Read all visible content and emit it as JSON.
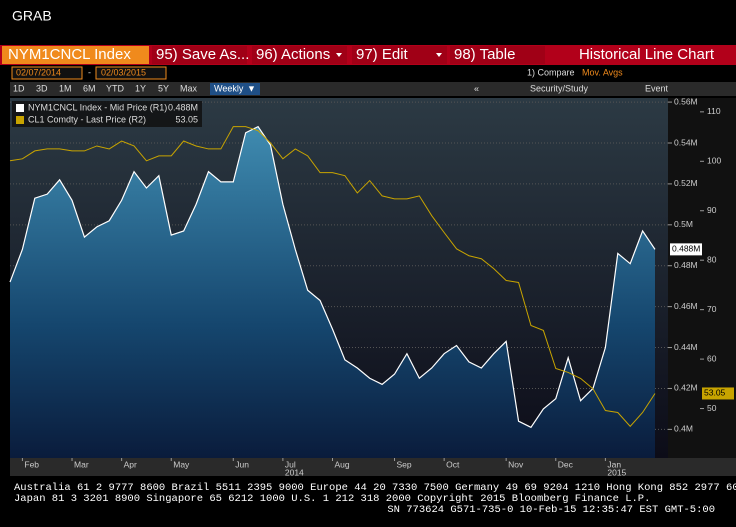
{
  "ui": {
    "window_title": "GRAB",
    "ticker": "NYM1CNCL Index",
    "menu": [
      "95) Save As...",
      "96) Actions",
      "97) Edit",
      "98) Table"
    ],
    "function_title": "Historical Line Chart",
    "start_date": "02/07/2014",
    "date_sep": "-",
    "end_date": "02/03/2015",
    "compare": "1) Compare",
    "mov_avgs": "Mov. Avgs",
    "ranges": [
      "1D",
      "3D",
      "1M",
      "6M",
      "YTD",
      "1Y",
      "5Y",
      "Max"
    ],
    "frequency": "Weekly",
    "security_study": "Security/Study",
    "event": "Event",
    "footer": [
      "Australia 61 2 9777 8600 Brazil 5511 2395 9000 Europe 44 20 7330 7500 Germany 49 69 9204 1210 Hong Kong 852 2977 6000",
      "Japan 81 3 3201 8900       Singapore 65 6212 1000       U.S. 1 212 318 2000       Copyright 2015 Bloomberg Finance L.P.",
      "SN 773624 G571-735-0 10-Feb-15 12:35:47 EST  GMT-5:00"
    ]
  },
  "chart_data": {
    "type": "line",
    "categories": [
      null,
      "Feb",
      null,
      null,
      null,
      "Mar",
      null,
      null,
      null,
      "Apr",
      null,
      null,
      null,
      "May",
      null,
      null,
      null,
      null,
      "Jun",
      null,
      null,
      null,
      "Jul",
      null,
      null,
      null,
      "Aug",
      null,
      null,
      null,
      null,
      "Sep",
      null,
      null,
      null,
      "Oct",
      null,
      null,
      null,
      null,
      "Nov",
      null,
      null,
      null,
      "Dec",
      null,
      null,
      null,
      "Jan",
      null,
      null,
      null,
      null
    ],
    "year_labels": [
      "2014",
      "2015"
    ],
    "series": [
      {
        "name": "NYM1CNCL Index - Mid Price (R1)",
        "color": "#ffffff",
        "last_value_label": "0.488M",
        "values": [
          0.472,
          0.488,
          0.513,
          0.515,
          0.522,
          0.512,
          0.494,
          0.499,
          0.502,
          0.512,
          0.526,
          0.518,
          0.524,
          0.495,
          0.497,
          0.51,
          0.526,
          0.521,
          0.521,
          0.545,
          0.548,
          0.539,
          0.51,
          0.488,
          0.468,
          0.463,
          0.449,
          0.434,
          0.43,
          0.425,
          0.422,
          0.427,
          0.437,
          0.425,
          0.43,
          0.437,
          0.441,
          0.433,
          0.43,
          0.437,
          0.443,
          0.404,
          0.401,
          0.41,
          0.415,
          0.435,
          0.414,
          0.42,
          0.44,
          0.486,
          0.481,
          0.497,
          0.488
        ]
      },
      {
        "name": "CL1 Comdty - Last Price (R2)",
        "color": "#c8a400",
        "axis": "y2",
        "last_value_label": "53.05",
        "values": [
          100.1,
          100.5,
          102.1,
          102.5,
          102.5,
          102.1,
          102.1,
          103.1,
          102.5,
          104.1,
          103.1,
          100.1,
          101.1,
          101.1,
          104.1,
          103.1,
          102.5,
          102.5,
          107.0,
          107.0,
          106.2,
          103.7,
          100.5,
          102.5,
          101.1,
          97.7,
          97.7,
          97.1,
          93.6,
          96.1,
          93.0,
          92.4,
          92.4,
          93.0,
          89.0,
          85.6,
          82.3,
          80.9,
          80.3,
          78.3,
          75.9,
          75.5,
          66.8,
          65.8,
          58.1,
          57.3,
          56.1,
          54.0,
          49.6,
          49.2,
          46.4,
          49.2,
          53.05
        ]
      }
    ],
    "ylim": [
      0.386,
      0.562
    ],
    "yticks": [
      {
        "value": 0.4,
        "label": "0.4M"
      },
      {
        "value": 0.42,
        "label": "0.42M"
      },
      {
        "value": 0.44,
        "label": "0.44M"
      },
      {
        "value": 0.46,
        "label": "0.46M"
      },
      {
        "value": 0.48,
        "label": "0.48M"
      },
      {
        "value": 0.5,
        "label": "0.5M"
      },
      {
        "value": 0.52,
        "label": "0.52M"
      },
      {
        "value": 0.54,
        "label": "0.54M"
      },
      {
        "value": 0.56,
        "label": "0.56M"
      }
    ],
    "y2lim": [
      40,
      112.8
    ],
    "y2ticks": [
      50,
      60,
      70,
      80,
      90,
      100,
      110
    ],
    "grid": true
  }
}
